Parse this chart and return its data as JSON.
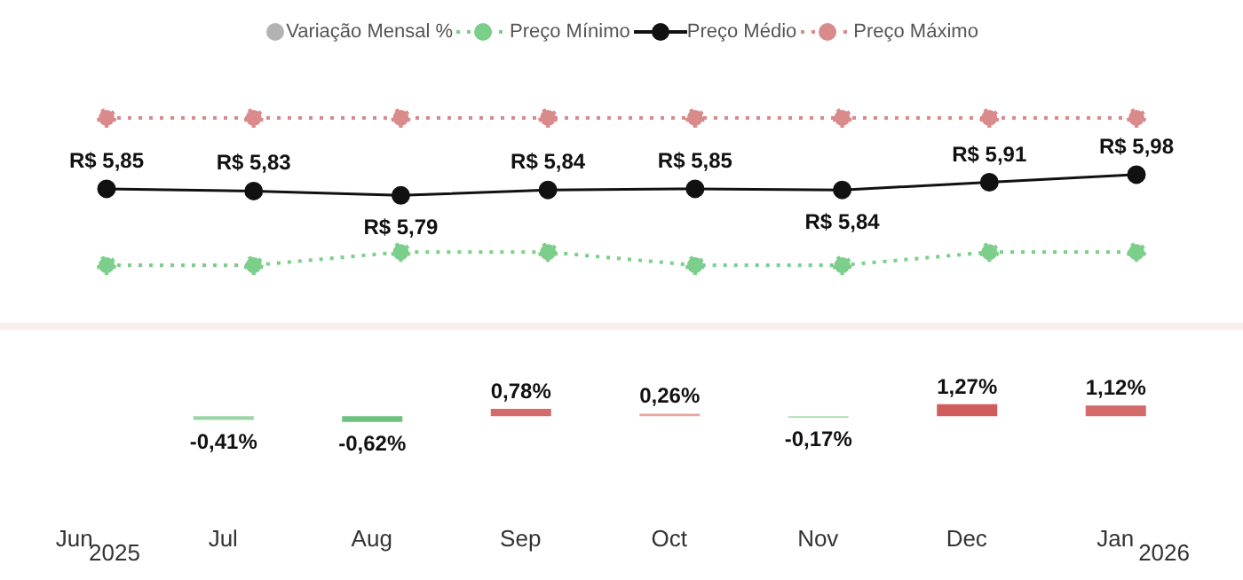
{
  "chart_data": [
    {
      "type": "line",
      "categories": [
        null,
        null,
        null,
        null,
        null,
        null,
        null,
        null
      ],
      "tick_labels": false,
      "legend": "top",
      "marker": "circle",
      "series": [
        {
          "name": "Preço Mínimo",
          "color": "#7ccf8a",
          "line_style": "dotted",
          "values": [
            5.15,
            5.15,
            5.27,
            5.27,
            5.15,
            5.15,
            5.27,
            5.27
          ]
        },
        {
          "name": "Preço Médio",
          "color": "#111111",
          "line_style": "solid",
          "values": [
            5.85,
            5.83,
            5.79,
            5.84,
            5.85,
            5.84,
            5.91,
            5.98
          ],
          "value_labels": [
            "R$ 5,85",
            "R$ 5,83",
            "R$ 5,79",
            "R$ 5,84",
            "R$ 5,85",
            "R$ 5,84",
            "R$ 5,91",
            "R$ 5,98"
          ]
        },
        {
          "name": "Preço Máximo",
          "color": "#d98a8a",
          "line_style": "dotted",
          "values": [
            6.5,
            6.5,
            6.5,
            6.5,
            6.5,
            6.5,
            6.5,
            6.5
          ]
        }
      ]
    },
    {
      "type": "bar",
      "categories": [
        "Jun",
        "Jul",
        "Aug",
        "Sep",
        "Oct",
        "Nov",
        "Dec",
        "Jan"
      ],
      "tick_labels": "x",
      "legend": "top",
      "colors": [
        "#b3b3b3",
        "#9ad6a4",
        "#6cc17e",
        "#d46a6a",
        "#e8a5a5",
        "#a8dcb0",
        "#d05c5c",
        "#d46a6a"
      ],
      "series": [
        {
          "name": "Variação Mensal %",
          "values": [
            null,
            -0.41,
            -0.62,
            0.78,
            0.26,
            -0.17,
            1.27,
            1.12
          ],
          "value_labels": [
            null,
            "-0,41%",
            "-0,62%",
            "0,78%",
            "0,26%",
            "-0,17%",
            "1,27%",
            "1,12%"
          ]
        }
      ],
      "annotations": [
        "2025",
        "2026"
      ]
    }
  ]
}
